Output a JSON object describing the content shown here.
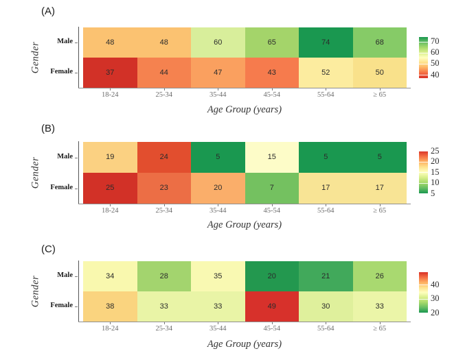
{
  "chart_data": [
    {
      "type": "heatmap",
      "panel_label": "(A)",
      "xlabel": "Age Group (years)",
      "ylabel": "Gender",
      "legend_position": "right",
      "x_categories": [
        "18-24",
        "25-34",
        "35-44",
        "45-54",
        "55-64",
        "≥ 65"
      ],
      "y_categories": [
        "Male",
        "Female"
      ],
      "series": [
        {
          "name": "Male",
          "values": [
            48,
            48,
            60,
            65,
            74,
            68
          ]
        },
        {
          "name": "Female",
          "values": [
            37,
            44,
            47,
            43,
            52,
            50
          ]
        }
      ],
      "cell_colors": [
        [
          "#fbc271",
          "#fbc271",
          "#d8ee9b",
          "#a4d46a",
          "#1a9850",
          "#86cb67"
        ],
        [
          "#d23127",
          "#f5824f",
          "#faa05f",
          "#f67b4d",
          "#fcec9f",
          "#f9e18b"
        ]
      ],
      "colorbar": {
        "min": 37,
        "max": 74,
        "ticks": [
          70,
          60,
          50,
          40
        ],
        "high_color": "#1a9850",
        "low_color": "#d73027",
        "palette_top_to_bottom": [
          "#1a9850",
          "#66bd63",
          "#a6d96a",
          "#d9ef8b",
          "#ffffbf",
          "#fee08b",
          "#fdae61",
          "#f46d43",
          "#d73027"
        ]
      }
    },
    {
      "type": "heatmap",
      "panel_label": "(B)",
      "xlabel": "Age Group (years)",
      "ylabel": "Gender",
      "legend_position": "right",
      "x_categories": [
        "18-24",
        "25-34",
        "35-44",
        "45-54",
        "55-64",
        "≥ 65"
      ],
      "y_categories": [
        "Male",
        "Female"
      ],
      "series": [
        {
          "name": "Male",
          "values": [
            19,
            24,
            5,
            15,
            5,
            5
          ]
        },
        {
          "name": "Female",
          "values": [
            25,
            23,
            20,
            7,
            17,
            17
          ]
        }
      ],
      "cell_colors": [
        [
          "#fbd182",
          "#e24e2e",
          "#1a9850",
          "#fdfcc8",
          "#1a9850",
          "#1a9850"
        ],
        [
          "#d23127",
          "#ec6e45",
          "#faae6a",
          "#74c160",
          "#f8e495",
          "#f8e495"
        ]
      ],
      "colorbar": {
        "min": 5,
        "max": 25,
        "ticks": [
          25,
          20,
          15,
          10,
          5
        ],
        "high_color": "#d73027",
        "low_color": "#1a9850",
        "palette_top_to_bottom": [
          "#d73027",
          "#f46d43",
          "#fdae61",
          "#fee08b",
          "#ffffbf",
          "#d9ef8b",
          "#a6d96a",
          "#66bd63",
          "#1a9850"
        ]
      }
    },
    {
      "type": "heatmap",
      "panel_label": "(C)",
      "xlabel": "Age Group (years)",
      "ylabel": "Gender",
      "legend_position": "right",
      "x_categories": [
        "18-24",
        "25-34",
        "35-44",
        "45-54",
        "55-64",
        "≥ 65"
      ],
      "y_categories": [
        "Male",
        "Female"
      ],
      "series": [
        {
          "name": "Male",
          "values": [
            34,
            28,
            35,
            20,
            21,
            26
          ]
        },
        {
          "name": "Female",
          "values": [
            38,
            33,
            33,
            49,
            30,
            33
          ]
        }
      ],
      "cell_colors": [
        [
          "#f9f8ae",
          "#a3d46e",
          "#f9f9b2",
          "#23984f",
          "#41a95b",
          "#a9d970"
        ],
        [
          "#fad47f",
          "#e9f4a6",
          "#e9f4a6",
          "#d7312b",
          "#dff09c",
          "#ebf5a8"
        ]
      ],
      "colorbar": {
        "min": 20,
        "max": 49,
        "ticks": [
          40,
          30,
          20
        ],
        "high_color": "#d73027",
        "low_color": "#1a9850",
        "palette_top_to_bottom": [
          "#d73027",
          "#f46d43",
          "#fdae61",
          "#fee08b",
          "#ffffbf",
          "#d9ef8b",
          "#a6d96a",
          "#66bd63",
          "#1a9850"
        ]
      }
    }
  ]
}
